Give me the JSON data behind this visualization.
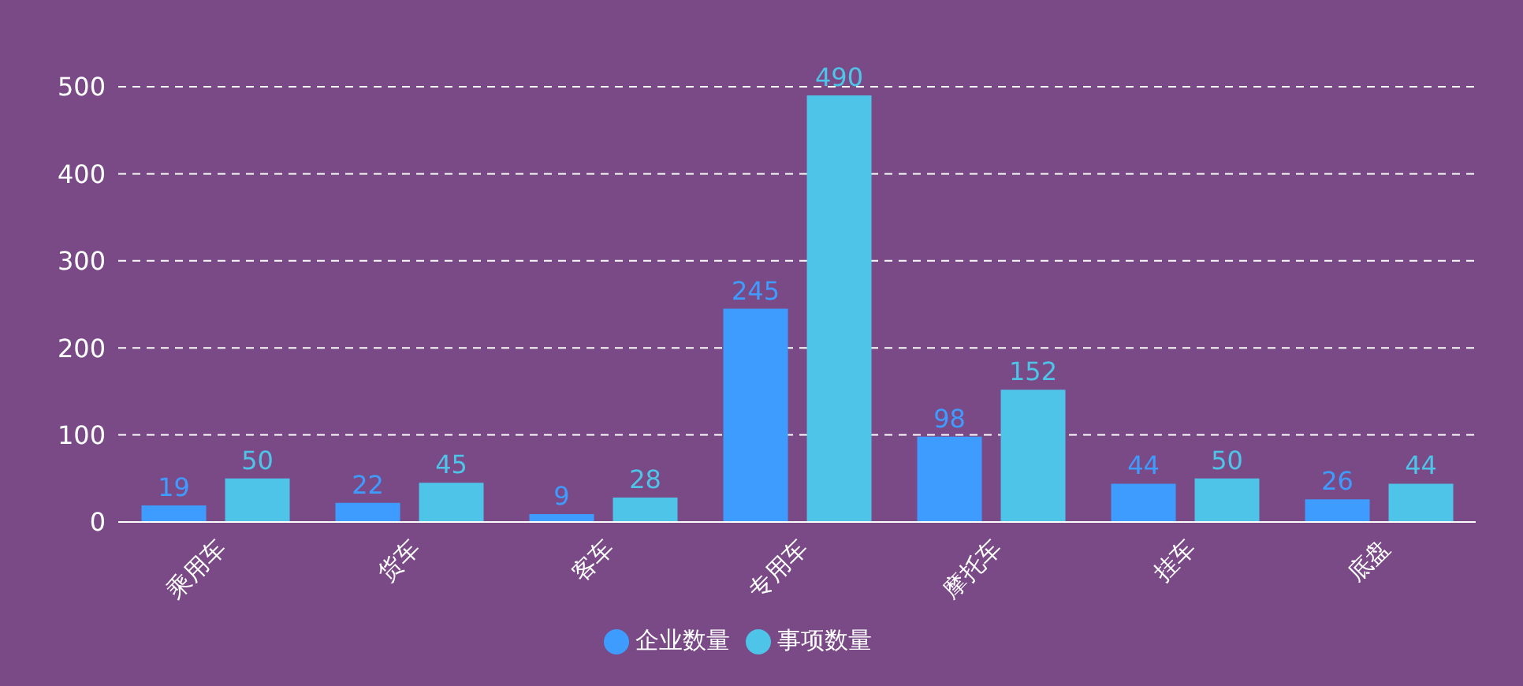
{
  "chart_data": {
    "type": "bar",
    "categories": [
      "乘用车",
      "货车",
      "客车",
      "专用车",
      "摩托车",
      "挂车",
      "底盘"
    ],
    "series": [
      {
        "name": "企业数量",
        "color": "#3f9cff",
        "values": [
          19,
          22,
          9,
          245,
          98,
          44,
          26
        ]
      },
      {
        "name": "事项数量",
        "color": "#4dc4e8",
        "values": [
          50,
          45,
          28,
          490,
          152,
          50,
          44
        ]
      }
    ],
    "ylim": [
      0,
      500
    ],
    "yticks": [
      0,
      100,
      200,
      300,
      400,
      500
    ],
    "grid": "y",
    "legend": "bottom",
    "data_labels": true
  }
}
